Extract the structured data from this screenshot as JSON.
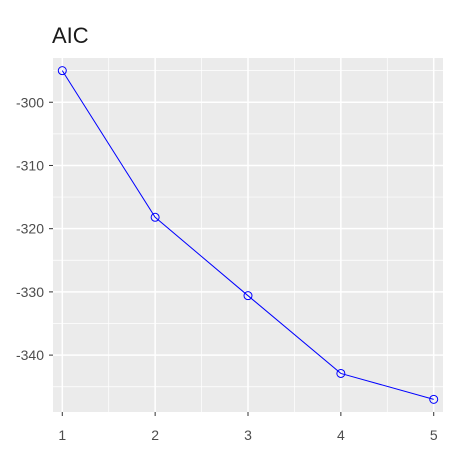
{
  "chart_data": {
    "type": "line",
    "title": "AIC",
    "xlabel": "",
    "ylabel": "",
    "x": [
      1,
      2,
      3,
      4,
      5
    ],
    "series": [
      {
        "values": [
          -295.0,
          -318.2,
          -330.6,
          -342.9,
          -347.0
        ]
      }
    ],
    "x_ticks": [
      "1",
      "2",
      "3",
      "4",
      "5"
    ],
    "y_ticks": [
      "-300",
      "-310",
      "-320",
      "-330",
      "-340"
    ],
    "y_tick_values": [
      -300,
      -310,
      -320,
      -330,
      -340
    ],
    "xlim": [
      0.9,
      5.1
    ],
    "ylim": [
      -349,
      -293
    ],
    "grid": true,
    "legend": "none",
    "colors": {
      "line": "#0000ff",
      "panel_bg": "#ebebeb",
      "grid": "#ffffff"
    }
  }
}
